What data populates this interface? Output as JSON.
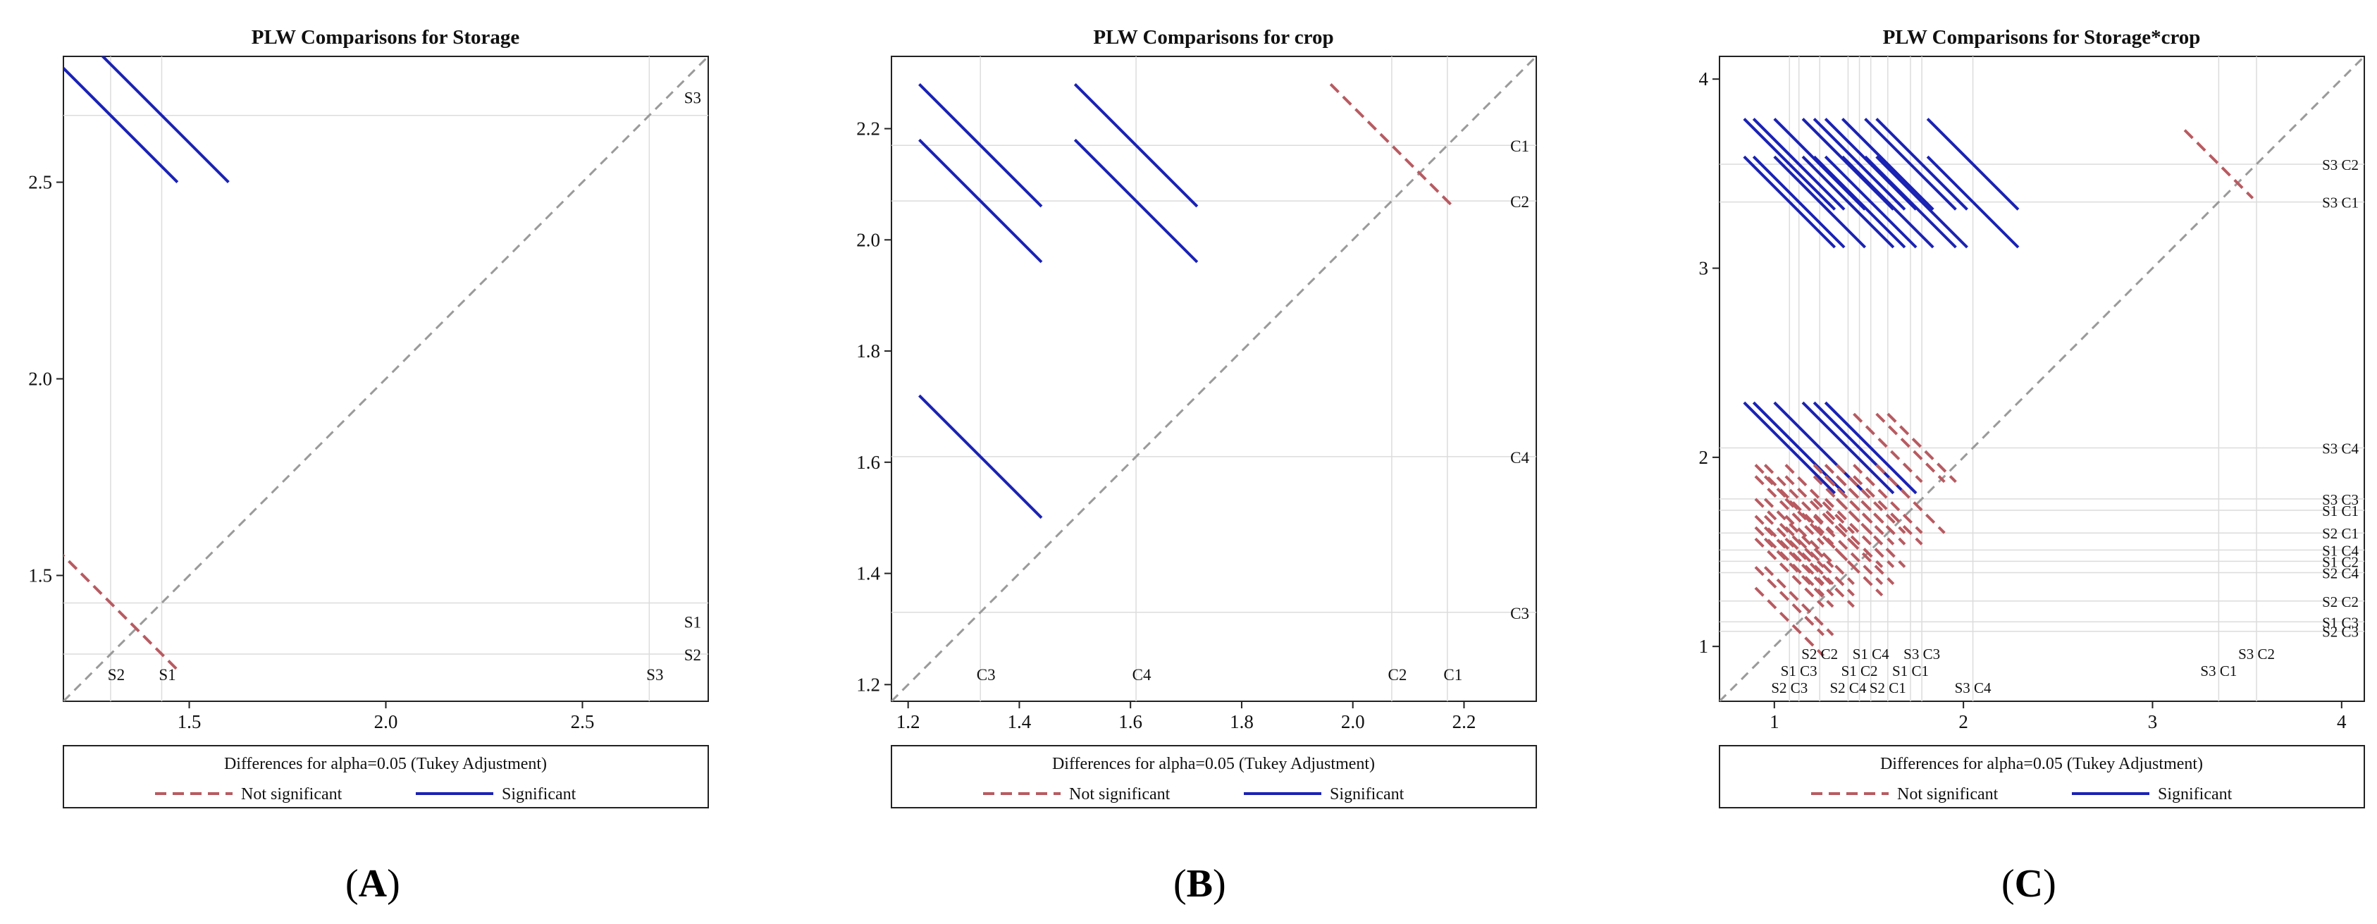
{
  "colors": {
    "significant": "#1a22b4",
    "not_significant": "#b85a60",
    "diagonal": "#9a9a9a",
    "gridline": "#dcdcdc",
    "frame": "#222222"
  },
  "legend": {
    "title": "Differences for alpha=0.05 (Tukey Adjustment)",
    "not_significant": "Not significant",
    "significant": "Significant"
  },
  "chart_data": [
    {
      "type": "diffogram",
      "panel_label": "A",
      "title": "PLW Comparisons for Storage",
      "xlim": [
        1.18,
        2.82
      ],
      "ylim": [
        1.18,
        2.82
      ],
      "xticks": [
        "1.5",
        "2.0",
        "2.5"
      ],
      "yticks": [
        "1.5",
        "2.0",
        "2.5"
      ],
      "xtick_values": [
        1.5,
        2.0,
        2.5
      ],
      "ytick_values": [
        1.5,
        2.0,
        2.5
      ],
      "levels": [
        {
          "name": "S1",
          "mean": 1.43
        },
        {
          "name": "S2",
          "mean": 1.3
        },
        {
          "name": "S3",
          "mean": 2.67
        }
      ],
      "comparisons": [
        {
          "a": "S3",
          "b": "S2",
          "significant": true,
          "half": 0.17
        },
        {
          "a": "S3",
          "b": "S1",
          "significant": true,
          "half": 0.17
        },
        {
          "a": "S1",
          "b": "S2",
          "significant": false,
          "half": 0.17
        }
      ]
    },
    {
      "type": "diffogram",
      "panel_label": "B",
      "title": "PLW Comparisons for crop",
      "xlim": [
        1.17,
        2.33
      ],
      "ylim": [
        1.17,
        2.33
      ],
      "xticks": [
        "1.2",
        "1.4",
        "1.6",
        "1.8",
        "2.0",
        "2.2"
      ],
      "yticks": [
        "1.2",
        "1.4",
        "1.6",
        "1.8",
        "2.0",
        "2.2"
      ],
      "xtick_values": [
        1.2,
        1.4,
        1.6,
        1.8,
        2.0,
        2.2
      ],
      "ytick_values": [
        1.2,
        1.4,
        1.6,
        1.8,
        2.0,
        2.2
      ],
      "levels": [
        {
          "name": "C1",
          "mean": 2.17
        },
        {
          "name": "C2",
          "mean": 2.07
        },
        {
          "name": "C3",
          "mean": 1.33
        },
        {
          "name": "C4",
          "mean": 1.61
        }
      ],
      "comparisons": [
        {
          "a": "C1",
          "b": "C3",
          "significant": true,
          "half": 0.11
        },
        {
          "a": "C1",
          "b": "C4",
          "significant": true,
          "half": 0.11
        },
        {
          "a": "C2",
          "b": "C3",
          "significant": true,
          "half": 0.11
        },
        {
          "a": "C2",
          "b": "C4",
          "significant": true,
          "half": 0.11
        },
        {
          "a": "C4",
          "b": "C3",
          "significant": true,
          "half": 0.11
        },
        {
          "a": "C1",
          "b": "C2",
          "significant": false,
          "half": 0.11
        }
      ]
    },
    {
      "type": "diffogram",
      "panel_label": "C",
      "title": "PLW Comparisons for Storage*crop",
      "xlim": [
        0.71,
        4.12
      ],
      "ylim": [
        0.71,
        4.12
      ],
      "xticks": [
        "1",
        "2",
        "3",
        "4"
      ],
      "yticks": [
        "1",
        "2",
        "3",
        "4"
      ],
      "xtick_values": [
        1,
        2,
        3,
        4
      ],
      "ytick_values": [
        1,
        2,
        3,
        4
      ],
      "levels": [
        {
          "name": "S3 C2",
          "mean": 3.55
        },
        {
          "name": "S3 C1",
          "mean": 3.35
        },
        {
          "name": "S3 C4",
          "mean": 2.05
        },
        {
          "name": "S3 C3",
          "mean": 1.78
        },
        {
          "name": "S1 C1",
          "mean": 1.72
        },
        {
          "name": "S2 C1",
          "mean": 1.6
        },
        {
          "name": "S1 C4",
          "mean": 1.51
        },
        {
          "name": "S1 C2",
          "mean": 1.45
        },
        {
          "name": "S2 C4",
          "mean": 1.39
        },
        {
          "name": "S2 C2",
          "mean": 1.24
        },
        {
          "name": "S1 C3",
          "mean": 1.13
        },
        {
          "name": "S2 C3",
          "mean": 1.08
        }
      ],
      "significant_pair_half": 0.24,
      "nonsignificant_pair_half": 0.18
    }
  ]
}
